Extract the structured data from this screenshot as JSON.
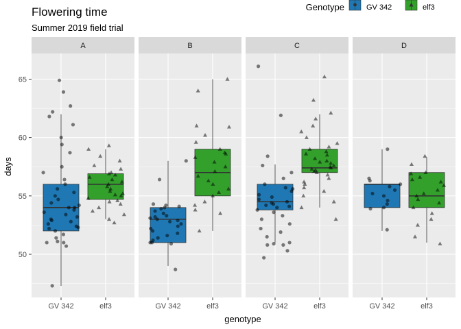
{
  "chart_data": {
    "type": "box",
    "title": "Flowering time",
    "subtitle": "Summer 2019 field trial",
    "xlabel": "genotype",
    "ylabel": "days",
    "ylim": [
      46.3,
      67.2
    ],
    "yticks": [
      50,
      55,
      60,
      65
    ],
    "legend": {
      "title": "Genotype",
      "position": "top-right",
      "entries": [
        {
          "name": "GV 342",
          "color": "#1f78b4",
          "shape": "circle"
        },
        {
          "name": "elf3",
          "color": "#33a02c",
          "shape": "triangle"
        }
      ]
    },
    "categories": [
      "GV 342",
      "elf3"
    ],
    "facets": [
      {
        "label": "A",
        "groups": [
          {
            "genotype": "GV 342",
            "min": 47.3,
            "q1": 52.0,
            "median": 54.0,
            "q3": 56.0,
            "max": 62.0,
            "points": [
              61.8,
              58.7,
              63.9,
              64.9,
              62.2,
              61.1,
              62.7,
              60.0,
              59.4,
              57.5,
              57.0,
              56.4,
              56.0,
              55.6,
              55.3,
              55.0,
              54.7,
              54.4,
              54.2,
              54.0,
              54.0,
              53.8,
              53.6,
              53.4,
              53.2,
              53.0,
              52.8,
              52.6,
              52.4,
              52.2,
              52.0,
              51.7,
              51.4,
              51.1,
              51.0,
              51.0,
              50.7,
              52.3,
              52.9,
              47.3
            ]
          },
          {
            "genotype": "elf3",
            "min": 53.0,
            "q1": 54.7,
            "median": 56.0,
            "q3": 56.9,
            "max": 59.0,
            "points": [
              59.3,
              59.0,
              58.4,
              58.0,
              57.6,
              57.3,
              57.0,
              56.8,
              56.6,
              56.4,
              56.2,
              56.0,
              55.8,
              55.6,
              55.4,
              55.2,
              55.0,
              54.8,
              54.6,
              54.3,
              54.0,
              53.7,
              53.4,
              53.0,
              52.7,
              54.5,
              55.1,
              56.9
            ]
          }
        ]
      },
      {
        "label": "B",
        "groups": [
          {
            "genotype": "GV 342",
            "min": 49.0,
            "q1": 51.0,
            "median": 53.0,
            "q3": 54.0,
            "max": 58.0,
            "points": [
              56.4,
              58.0,
              54.3,
              54.2,
              54.1,
              54.0,
              53.9,
              53.7,
              53.5,
              53.3,
              53.1,
              53.0,
              52.8,
              52.6,
              52.4,
              52.2,
              52.0,
              51.8,
              51.6,
              51.4,
              51.2,
              51.0,
              51.0,
              50.9,
              53.2,
              52.9,
              48.7
            ]
          },
          {
            "genotype": "elf3",
            "min": 52.0,
            "q1": 55.0,
            "median": 57.0,
            "q3": 59.0,
            "max": 65.0,
            "points": [
              65.0,
              64.0,
              60.9,
              60.2,
              59.6,
              59.0,
              58.7,
              58.3,
              57.9,
              57.5,
              57.1,
              56.7,
              56.3,
              56.0,
              55.6,
              55.3,
              55.0,
              54.5,
              54.2,
              53.8,
              53.5,
              52.0,
              61.0,
              58.6
            ]
          }
        ]
      },
      {
        "label": "C",
        "groups": [
          {
            "genotype": "GV 342",
            "min": 51.0,
            "q1": 53.8,
            "median": 54.5,
            "q3": 56.0,
            "max": 57.7,
            "points": [
              66.1,
              61.9,
              58.4,
              57.6,
              57.0,
              56.5,
              56.0,
              55.7,
              55.4,
              55.1,
              54.9,
              54.7,
              54.5,
              54.4,
              54.3,
              54.2,
              54.1,
              54.0,
              53.8,
              53.6,
              53.3,
              53.0,
              52.6,
              52.2,
              51.9,
              51.5,
              51.0,
              50.9,
              50.8,
              50.8,
              50.3,
              49.7,
              55.6
            ]
          },
          {
            "genotype": "elf3",
            "min": 54.0,
            "q1": 57.0,
            "median": 57.4,
            "q3": 59.0,
            "max": 62.0,
            "points": [
              65.2,
              63.2,
              62.1,
              61.6,
              61.0,
              60.5,
              60.0,
              59.5,
              59.2,
              59.0,
              58.8,
              58.5,
              58.2,
              58.0,
              57.8,
              57.6,
              57.5,
              57.4,
              57.3,
              57.2,
              57.1,
              57.0,
              56.8,
              56.5,
              56.2,
              56.0,
              55.7,
              55.4,
              55.0,
              54.5,
              54.0,
              53.0,
              57.9,
              58.6
            ]
          }
        ]
      },
      {
        "label": "D",
        "groups": [
          {
            "genotype": "GV 342",
            "min": 52.0,
            "q1": 54.0,
            "median": 56.0,
            "q3": 56.0,
            "max": 59.0,
            "points": [
              59.0,
              56.5,
              56.3,
              56.0,
              55.8,
              55.5,
              55.2,
              55.0,
              54.6,
              54.3,
              54.0,
              53.9,
              52.1
            ]
          },
          {
            "genotype": "elf3",
            "min": 51.0,
            "q1": 54.0,
            "median": 55.0,
            "q3": 57.0,
            "max": 58.3,
            "points": [
              58.4,
              57.7,
              57.0,
              56.9,
              56.6,
              56.2,
              55.9,
              55.5,
              55.2,
              55.0,
              54.7,
              54.4,
              54.0,
              53.5,
              53.0,
              52.5,
              51.5,
              50.9,
              56.4
            ]
          }
        ]
      }
    ]
  }
}
